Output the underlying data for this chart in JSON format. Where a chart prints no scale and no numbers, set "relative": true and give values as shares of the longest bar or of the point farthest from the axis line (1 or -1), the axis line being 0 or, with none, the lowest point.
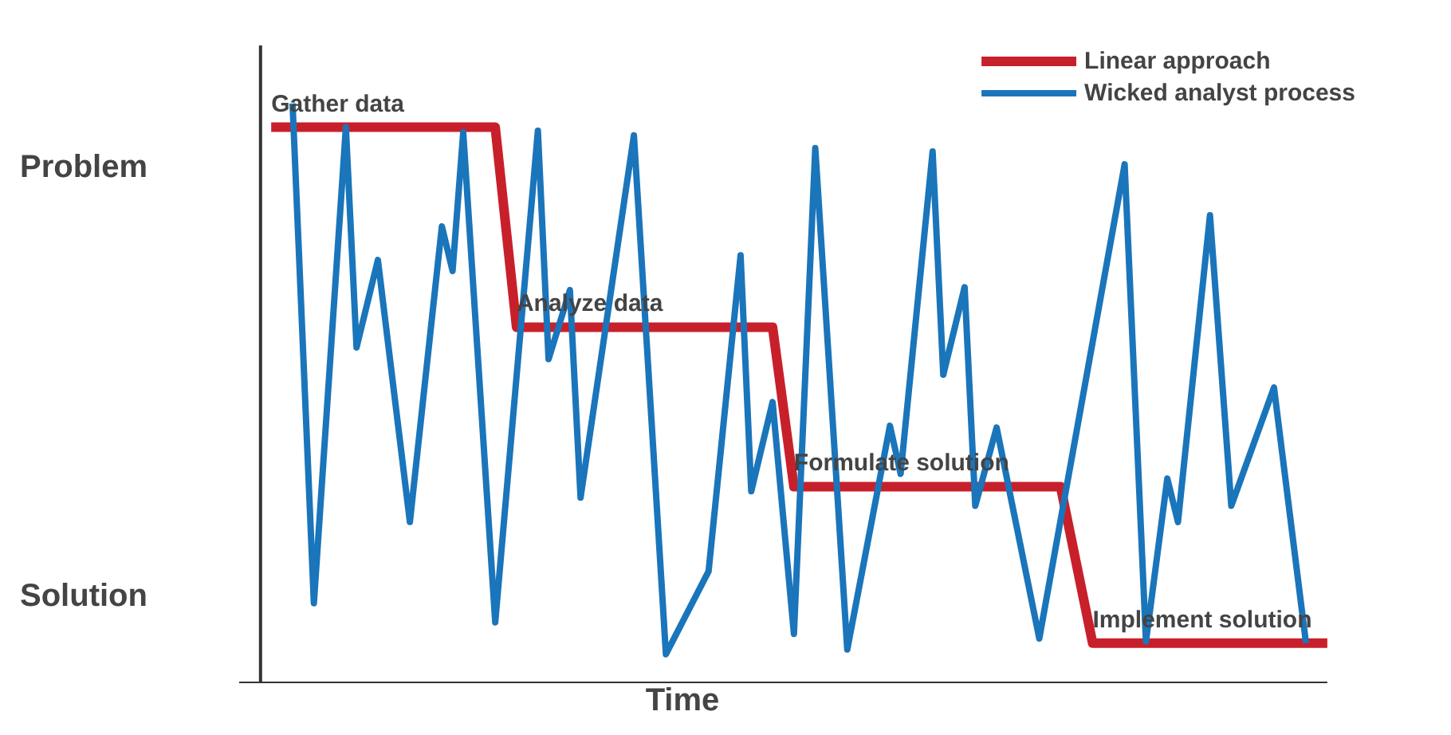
{
  "chart_data": {
    "type": "line",
    "relative": true,
    "xlabel": "Time",
    "legend": "top right",
    "marker": "none",
    "line_style": "solid",
    "grid": false,
    "annotations": [
      "Problem",
      "Solution",
      "Gather data",
      "Analyze data",
      "Formulate solution",
      "Implement solution"
    ],
    "categories": [
      null,
      null,
      null,
      null,
      null,
      null,
      null,
      null,
      null,
      null,
      null,
      null,
      null,
      null,
      null,
      null,
      null,
      null,
      null,
      null,
      null,
      null,
      null,
      null,
      null,
      null,
      null,
      null,
      null,
      null,
      null,
      null,
      null,
      null,
      null,
      null,
      null,
      null,
      null,
      null,
      null,
      null,
      null,
      null,
      null,
      null,
      null,
      null,
      null,
      null,
      null,
      null,
      null,
      null,
      null,
      null,
      null,
      null,
      null,
      null,
      null,
      null,
      null,
      null,
      null,
      null,
      null,
      null,
      null,
      null,
      null,
      null,
      null,
      null,
      null,
      null,
      null,
      null,
      null,
      null,
      null,
      null,
      null,
      null,
      null,
      null,
      null,
      null,
      null,
      null,
      null,
      null,
      null,
      null,
      null,
      null,
      null,
      null,
      null,
      null,
      null
    ],
    "series": [
      {
        "name": "Linear approach",
        "color": "#c8202a",
        "values": [
          null,
          0.959,
          null,
          null,
          null,
          null,
          null,
          null,
          null,
          null,
          null,
          null,
          null,
          null,
          null,
          null,
          null,
          null,
          null,
          null,
          null,
          null,
          0.959,
          null,
          0.614,
          null,
          null,
          null,
          null,
          null,
          null,
          null,
          null,
          null,
          null,
          null,
          null,
          null,
          null,
          null,
          null,
          null,
          null,
          null,
          null,
          null,
          null,
          null,
          0.614,
          null,
          0.339,
          null,
          null,
          null,
          null,
          null,
          null,
          null,
          null,
          null,
          null,
          null,
          null,
          null,
          null,
          null,
          null,
          null,
          null,
          null,
          null,
          null,
          null,
          null,
          null,
          0.339,
          null,
          null,
          0.069,
          null,
          null,
          null,
          null,
          null,
          null,
          null,
          null,
          null,
          null,
          null,
          null,
          null,
          null,
          null,
          null,
          null,
          null,
          null,
          null,
          null,
          0.069
        ]
      },
      {
        "name": "Wicked analyst process",
        "color": "#1a75bb",
        "values": [
          null,
          null,
          null,
          1.0,
          null,
          0.138,
          null,
          null,
          0.959,
          0.579,
          null,
          0.73,
          null,
          null,
          0.278,
          null,
          null,
          0.788,
          0.711,
          0.95,
          null,
          null,
          0.105,
          null,
          null,
          null,
          0.953,
          0.559,
          null,
          0.678,
          0.32,
          null,
          null,
          null,
          null,
          0.945,
          null,
          null,
          0.05,
          null,
          null,
          null,
          0.193,
          null,
          null,
          0.738,
          0.331,
          null,
          0.485,
          null,
          0.085,
          null,
          0.923,
          null,
          null,
          0.058,
          null,
          null,
          null,
          0.444,
          0.361,
          null,
          null,
          0.917,
          0.532,
          null,
          0.683,
          0.306,
          null,
          0.441,
          null,
          null,
          null,
          0.077,
          null,
          null,
          null,
          null,
          null,
          null,
          null,
          0.895,
          null,
          0.072,
          null,
          0.353,
          0.278,
          null,
          null,
          0.807,
          null,
          0.306,
          null,
          null,
          null,
          0.51,
          null,
          null,
          0.069,
          null,
          null
        ]
      }
    ]
  }
}
